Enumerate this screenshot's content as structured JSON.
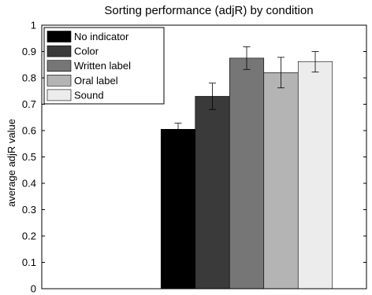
{
  "chart_data": {
    "type": "bar",
    "title": "Sorting performance (adjR) by condition",
    "xlabel": "",
    "ylabel": "average adjR value",
    "ylim": [
      0,
      1
    ],
    "yticks": [
      "0",
      "0.1",
      "0.2",
      "0.3",
      "0.4",
      "0.5",
      "0.6",
      "0.7",
      "0.8",
      "0.9",
      "1"
    ],
    "grid": false,
    "legend_position": "top-left",
    "series": [
      {
        "name": "No indicator",
        "value": 0.605,
        "err_low": 0.583,
        "err_high": 0.628,
        "color": "#000000"
      },
      {
        "name": "Color",
        "value": 0.73,
        "err_low": 0.68,
        "err_high": 0.78,
        "color": "#3a3a3a"
      },
      {
        "name": "Written label",
        "value": 0.875,
        "err_low": 0.832,
        "err_high": 0.918,
        "color": "#767676"
      },
      {
        "name": "Oral label",
        "value": 0.82,
        "err_low": 0.762,
        "err_high": 0.878,
        "color": "#b4b4b4"
      },
      {
        "name": "Sound",
        "value": 0.862,
        "err_low": 0.822,
        "err_high": 0.9,
        "color": "#ececec"
      }
    ]
  }
}
